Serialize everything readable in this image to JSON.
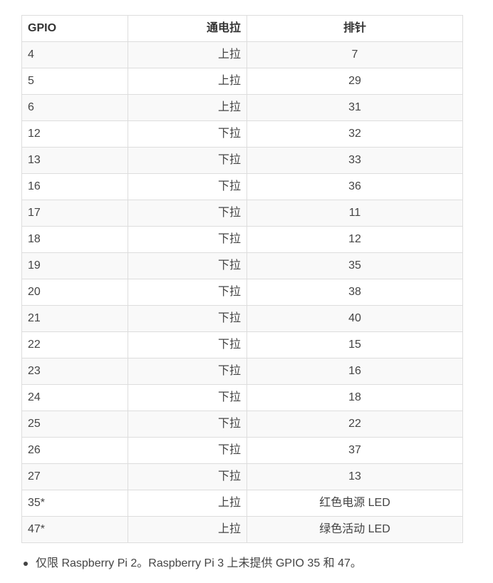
{
  "table": {
    "headers": [
      "GPIO",
      "通电拉",
      "排针"
    ],
    "rows": [
      [
        "4",
        "上拉",
        "7"
      ],
      [
        "5",
        "上拉",
        "29"
      ],
      [
        "6",
        "上拉",
        "31"
      ],
      [
        "12",
        "下拉",
        "32"
      ],
      [
        "13",
        "下拉",
        "33"
      ],
      [
        "16",
        "下拉",
        "36"
      ],
      [
        "17",
        "下拉",
        "11"
      ],
      [
        "18",
        "下拉",
        "12"
      ],
      [
        "19",
        "下拉",
        "35"
      ],
      [
        "20",
        "下拉",
        "38"
      ],
      [
        "21",
        "下拉",
        "40"
      ],
      [
        "22",
        "下拉",
        "15"
      ],
      [
        "23",
        "下拉",
        "16"
      ],
      [
        "24",
        "下拉",
        "18"
      ],
      [
        "25",
        "下拉",
        "22"
      ],
      [
        "26",
        "下拉",
        "37"
      ],
      [
        "27",
        "下拉",
        "13"
      ],
      [
        "35*",
        "上拉",
        "红色电源 LED"
      ],
      [
        "47*",
        "上拉",
        "绿色活动 LED"
      ]
    ]
  },
  "footnote": {
    "text": "仅限 Raspberry Pi 2。Raspberry Pi 3 上未提供 GPIO 35 和 47。"
  }
}
